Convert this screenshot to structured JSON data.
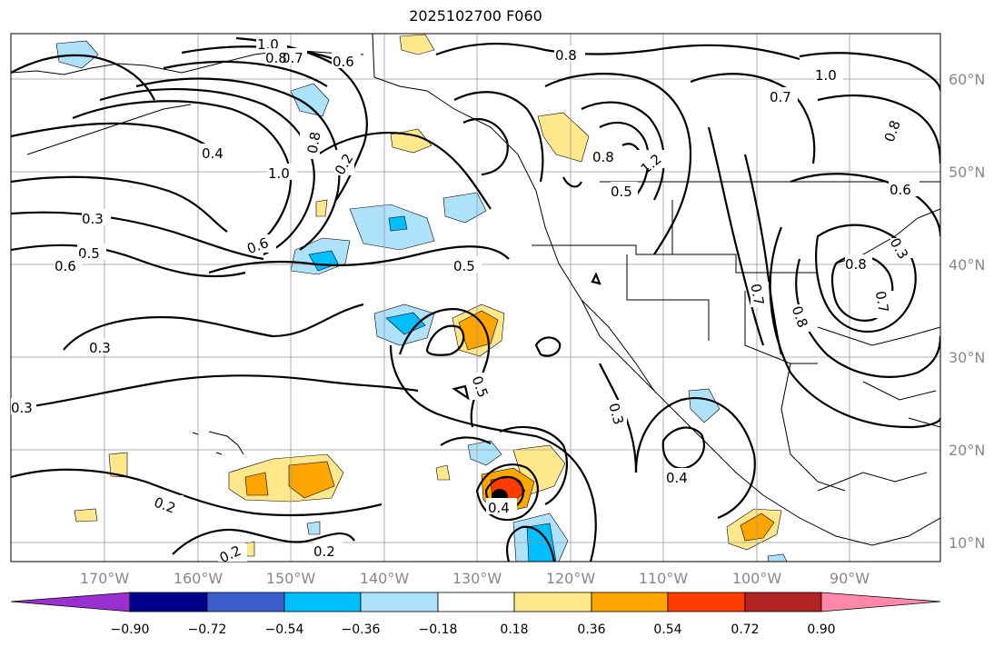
{
  "title": "2025102700 F060",
  "longitude_ticks": [
    "170°W",
    "160°W",
    "150°W",
    "140°W",
    "130°W",
    "120°W",
    "110°W",
    "100°W",
    "90°W"
  ],
  "latitude_ticks": [
    "60°N",
    "50°N",
    "40°N",
    "30°N",
    "20°N",
    "10°N"
  ],
  "colorbar": {
    "labels": [
      "−0.90",
      "−0.72",
      "−0.54",
      "−0.36",
      "−0.18",
      "0.18",
      "0.36",
      "0.54",
      "0.72",
      "0.90"
    ],
    "colors": [
      "#9b30d0",
      "#00008b",
      "#3a5fcd",
      "#00bfff",
      "#aee2fa",
      "#ffffff",
      "#ffe88c",
      "#ffa500",
      "#ff3c00",
      "#b22222",
      "#ff88aa"
    ]
  },
  "contour_labels": [
    "1.0",
    "0.8",
    "0.7",
    "0.6",
    "0.8",
    "0.7",
    "1.0",
    "0.4",
    "1.0",
    "0.8",
    "0.2",
    "0.3",
    "0.5",
    "0.6",
    "0.5",
    "0.8",
    "1.2",
    "0.5",
    "0.6",
    "0.8",
    "0.3",
    "0.3",
    "0.3",
    "0.5",
    "0.3",
    "0.4",
    "0.2",
    "0.4",
    "0.2",
    "0.2",
    "0.8",
    "0.7",
    "0.8",
    "0.7",
    "0.6"
  ],
  "storm_marker": "tropical-cyclone-center"
}
